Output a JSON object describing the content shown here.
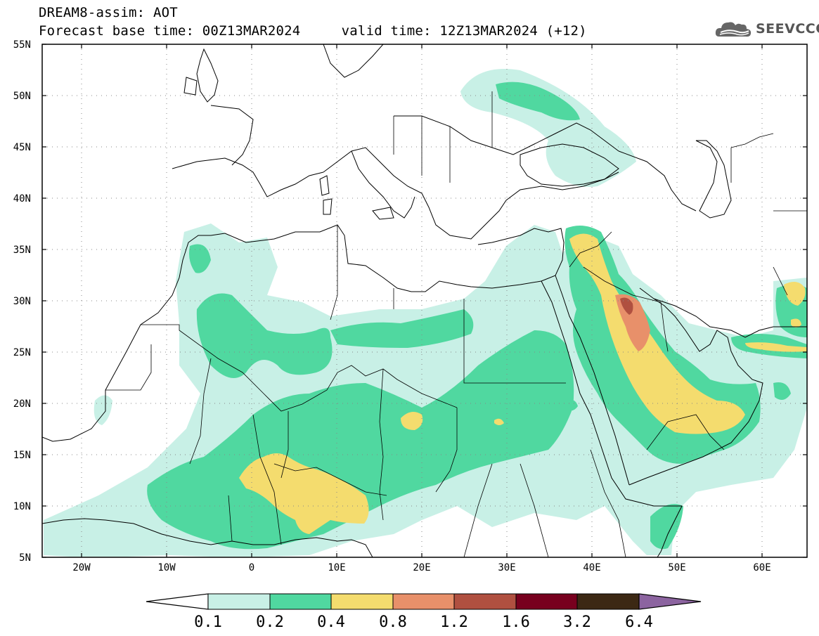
{
  "header": {
    "title_line1": "DREAM8-assim: AOT",
    "base_time": "Forecast base time: 00Z13MAR2024",
    "valid_time": "valid time: 12Z13MAR2024 (+12)",
    "logo_text": "SEEVCCC",
    "logo_icon": "cloud-icon"
  },
  "map": {
    "lon_range": [
      -25,
      65
    ],
    "lat_range": [
      5,
      55
    ],
    "grid": "dotted",
    "lat_ticks": [
      "5N",
      "10N",
      "15N",
      "20N",
      "25N",
      "30N",
      "35N",
      "40N",
      "45N",
      "50N",
      "55N"
    ],
    "lon_ticks": [
      "20W",
      "10W",
      "0",
      "10E",
      "20E",
      "30E",
      "40E",
      "50E",
      "60E"
    ]
  },
  "colorbar": {
    "labels": [
      "0.1",
      "0.2",
      "0.4",
      "0.8",
      "1.2",
      "1.6",
      "3.2",
      "6.4"
    ],
    "colors": [
      "#c8f0e6",
      "#50d8a0",
      "#f4dc6e",
      "#e8906a",
      "#b05040",
      "#78001e",
      "#3c2814",
      "#8c64a0"
    ],
    "under_color": "#ffffff"
  }
}
